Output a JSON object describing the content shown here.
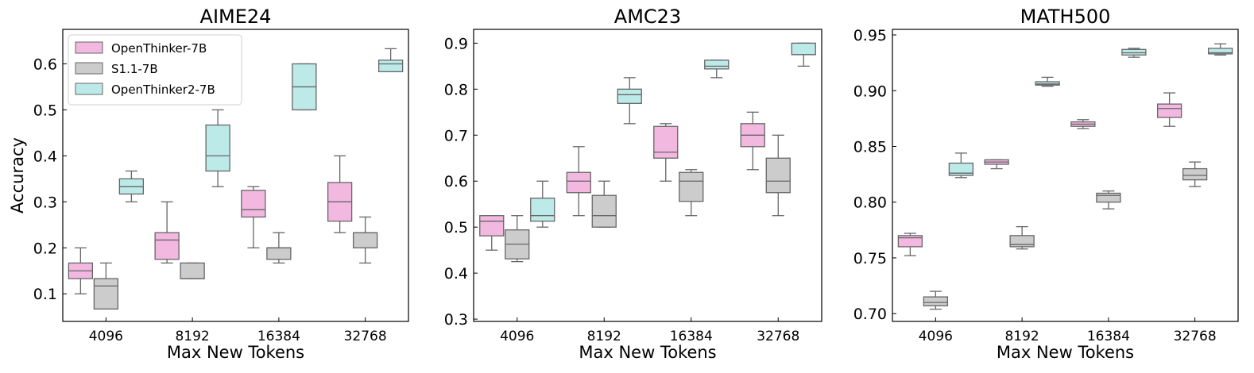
{
  "legend": {
    "entries": [
      {
        "name": "OpenThinker-7B",
        "color": "#f2b8e0"
      },
      {
        "name": "S1.1-7B",
        "color": "#cccccc"
      },
      {
        "name": "OpenThinker2-7B",
        "color": "#bceae8"
      }
    ],
    "placement": "top-left"
  },
  "chart_data": [
    {
      "type": "box",
      "title": "AIME24",
      "xlabel": "Max New Tokens",
      "ylabel": "Accuracy",
      "categories": [
        "4096",
        "8192",
        "16384",
        "32768"
      ],
      "ylim": [
        0.04,
        0.675
      ],
      "yticks": [
        0.1,
        0.2,
        0.3,
        0.4,
        0.5,
        0.6
      ],
      "ytick_labels": [
        "0.1",
        "0.2",
        "0.3",
        "0.4",
        "0.5",
        "0.6"
      ],
      "series": [
        {
          "name": "OpenThinker-7B",
          "boxes": [
            {
              "min": 0.1,
              "q1": 0.133,
              "median": 0.15,
              "q3": 0.167,
              "max": 0.2
            },
            {
              "min": 0.167,
              "q1": 0.175,
              "median": 0.217,
              "q3": 0.233,
              "max": 0.3
            },
            {
              "min": 0.2,
              "q1": 0.267,
              "median": 0.283,
              "q3": 0.325,
              "max": 0.333
            },
            {
              "min": 0.233,
              "q1": 0.258,
              "median": 0.3,
              "q3": 0.342,
              "max": 0.4
            }
          ]
        },
        {
          "name": "S1.1-7B",
          "boxes": [
            {
              "min": 0.067,
              "q1": 0.067,
              "median": 0.117,
              "q3": 0.133,
              "max": 0.167
            },
            {
              "min": 0.133,
              "q1": 0.133,
              "median": 0.133,
              "q3": 0.167,
              "max": 0.167
            },
            {
              "min": 0.167,
              "q1": 0.175,
              "median": 0.2,
              "q3": 0.2,
              "max": 0.233
            },
            {
              "min": 0.167,
              "q1": 0.2,
              "median": 0.233,
              "q3": 0.233,
              "max": 0.267
            }
          ]
        },
        {
          "name": "OpenThinker2-7B",
          "boxes": [
            {
              "min": 0.3,
              "q1": 0.317,
              "median": 0.333,
              "q3": 0.35,
              "max": 0.367
            },
            {
              "min": 0.333,
              "q1": 0.367,
              "median": 0.4,
              "q3": 0.467,
              "max": 0.5
            },
            {
              "min": 0.5,
              "q1": 0.5,
              "median": 0.55,
              "q3": 0.6,
              "max": 0.6
            },
            {
              "min": 0.583,
              "q1": 0.583,
              "median": 0.6,
              "q3": 0.608,
              "max": 0.633
            }
          ]
        }
      ]
    },
    {
      "type": "box",
      "title": "AMC23",
      "xlabel": "Max New Tokens",
      "ylabel": "",
      "categories": [
        "4096",
        "8192",
        "16384",
        "32768"
      ],
      "ylim": [
        0.295,
        0.93
      ],
      "yticks": [
        0.3,
        0.4,
        0.5,
        0.6,
        0.7,
        0.8,
        0.9
      ],
      "ytick_labels": [
        "0.3",
        "0.4",
        "0.5",
        "0.6",
        "0.7",
        "0.8",
        "0.9"
      ],
      "series": [
        {
          "name": "OpenThinker-7B",
          "boxes": [
            {
              "min": 0.45,
              "q1": 0.481,
              "median": 0.513,
              "q3": 0.525,
              "max": 0.525
            },
            {
              "min": 0.525,
              "q1": 0.575,
              "median": 0.6,
              "q3": 0.619,
              "max": 0.675
            },
            {
              "min": 0.6,
              "q1": 0.65,
              "median": 0.663,
              "q3": 0.719,
              "max": 0.725
            },
            {
              "min": 0.625,
              "q1": 0.675,
              "median": 0.7,
              "q3": 0.725,
              "max": 0.75
            }
          ]
        },
        {
          "name": "S1.1-7B",
          "boxes": [
            {
              "min": 0.425,
              "q1": 0.431,
              "median": 0.463,
              "q3": 0.494,
              "max": 0.525
            },
            {
              "min": 0.5,
              "q1": 0.5,
              "median": 0.525,
              "q3": 0.569,
              "max": 0.6
            },
            {
              "min": 0.525,
              "q1": 0.556,
              "median": 0.6,
              "q3": 0.619,
              "max": 0.625
            },
            {
              "min": 0.525,
              "q1": 0.575,
              "median": 0.6,
              "q3": 0.65,
              "max": 0.7
            }
          ]
        },
        {
          "name": "OpenThinker2-7B",
          "boxes": [
            {
              "min": 0.5,
              "q1": 0.513,
              "median": 0.525,
              "q3": 0.563,
              "max": 0.6
            },
            {
              "min": 0.725,
              "q1": 0.769,
              "median": 0.788,
              "q3": 0.8,
              "max": 0.825
            },
            {
              "min": 0.825,
              "q1": 0.844,
              "median": 0.85,
              "q3": 0.863,
              "max": 0.863
            },
            {
              "min": 0.85,
              "q1": 0.875,
              "median": 0.875,
              "q3": 0.9,
              "max": 0.9
            }
          ]
        }
      ]
    },
    {
      "type": "box",
      "title": "MATH500",
      "xlabel": "Max New Tokens",
      "ylabel": "",
      "categories": [
        "4096",
        "8192",
        "16384",
        "32768"
      ],
      "ylim": [
        0.693,
        0.955
      ],
      "yticks": [
        0.7,
        0.75,
        0.8,
        0.85,
        0.9,
        0.95
      ],
      "ytick_labels": [
        "0.70",
        "0.75",
        "0.80",
        "0.85",
        "0.90",
        "0.95"
      ],
      "series": [
        {
          "name": "OpenThinker-7B",
          "boxes": [
            {
              "min": 0.752,
              "q1": 0.76,
              "median": 0.768,
              "q3": 0.77,
              "max": 0.772
            },
            {
              "min": 0.83,
              "q1": 0.834,
              "median": 0.836,
              "q3": 0.838,
              "max": 0.838
            },
            {
              "min": 0.866,
              "q1": 0.868,
              "median": 0.87,
              "q3": 0.872,
              "max": 0.874
            },
            {
              "min": 0.868,
              "q1": 0.876,
              "median": 0.884,
              "q3": 0.888,
              "max": 0.898
            }
          ]
        },
        {
          "name": "S1.1-7B",
          "boxes": [
            {
              "min": 0.704,
              "q1": 0.707,
              "median": 0.71,
              "q3": 0.715,
              "max": 0.72
            },
            {
              "min": 0.758,
              "q1": 0.76,
              "median": 0.762,
              "q3": 0.77,
              "max": 0.778
            },
            {
              "min": 0.794,
              "q1": 0.8,
              "median": 0.806,
              "q3": 0.808,
              "max": 0.81
            },
            {
              "min": 0.814,
              "q1": 0.82,
              "median": 0.824,
              "q3": 0.83,
              "max": 0.836
            }
          ]
        },
        {
          "name": "OpenThinker2-7B",
          "boxes": [
            {
              "min": 0.822,
              "q1": 0.824,
              "median": 0.826,
              "q3": 0.835,
              "max": 0.844
            },
            {
              "min": 0.904,
              "q1": 0.905,
              "median": 0.906,
              "q3": 0.908,
              "max": 0.912
            },
            {
              "min": 0.93,
              "q1": 0.932,
              "median": 0.934,
              "q3": 0.937,
              "max": 0.938
            },
            {
              "min": 0.932,
              "q1": 0.933,
              "median": 0.934,
              "q3": 0.938,
              "max": 0.942
            }
          ]
        }
      ]
    }
  ]
}
